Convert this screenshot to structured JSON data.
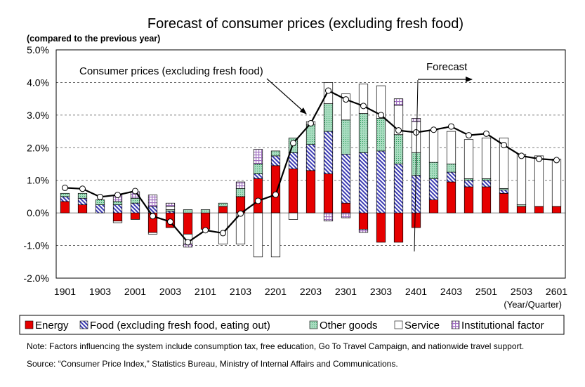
{
  "chart_data": {
    "type": "bar",
    "subtype": "stacked bar with line",
    "title": "Forecast of consumer prices (excluding fresh food)",
    "ylabel": "(compared to the previous year)",
    "xlabel": "(Year/Quarter)",
    "ylim": [
      -2.0,
      5.0
    ],
    "y_ticks": [
      "5.0%",
      "4.0%",
      "3.0%",
      "2.0%",
      "1.0%",
      "0.0%",
      "-1.0%",
      "-2.0%"
    ],
    "y_tick_values": [
      5,
      4,
      3,
      2,
      1,
      0,
      -1,
      -2
    ],
    "x_tick_labels": [
      "1901",
      "1903",
      "2001",
      "2003",
      "2101",
      "2103",
      "2201",
      "2203",
      "2301",
      "2303",
      "2401",
      "2403",
      "2501",
      "2503",
      "2601"
    ],
    "grid": "horizontal dashed",
    "legend_position": "bottom",
    "categories": [
      "1901",
      "1902",
      "1903",
      "1904",
      "2001",
      "2002",
      "2003",
      "2004",
      "2101",
      "2102",
      "2103",
      "2104",
      "2201",
      "2202",
      "2203",
      "2204",
      "2301",
      "2302",
      "2303",
      "2304",
      "2401",
      "2402",
      "2403",
      "2404",
      "2501",
      "2502",
      "2503",
      "2504",
      "2601"
    ],
    "series": [
      {
        "name": "Energy",
        "key": "energy",
        "color": "#e60000",
        "values": [
          0.35,
          0.25,
          0.0,
          -0.25,
          -0.2,
          -0.6,
          -0.45,
          -0.65,
          -0.5,
          0.2,
          0.5,
          1.05,
          1.45,
          1.35,
          1.3,
          1.2,
          0.3,
          -0.5,
          -0.9,
          -0.9,
          -0.45,
          0.4,
          0.95,
          0.8,
          0.8,
          0.6,
          0.2,
          0.2,
          0.2
        ]
      },
      {
        "name": "Food (excluding fresh food, eating out)",
        "key": "food",
        "color": "#3b3bb3",
        "values": [
          0.15,
          0.2,
          0.25,
          0.25,
          0.3,
          0.2,
          0.05,
          0.0,
          0.0,
          0.0,
          0.0,
          0.15,
          0.3,
          0.5,
          0.8,
          1.3,
          1.5,
          1.85,
          1.9,
          1.5,
          1.15,
          0.65,
          0.3,
          0.2,
          0.2,
          0.1,
          0.0,
          0.0,
          0.0
        ]
      },
      {
        "name": "Other goods",
        "key": "other",
        "color": "#2e9e5e",
        "values": [
          0.1,
          0.15,
          0.15,
          0.1,
          0.15,
          0.0,
          0.05,
          0.1,
          0.1,
          0.1,
          0.25,
          0.3,
          0.15,
          0.45,
          0.6,
          0.85,
          1.05,
          1.2,
          1.0,
          0.9,
          0.7,
          0.5,
          0.25,
          0.05,
          0.05,
          0.05,
          0.05,
          0.0,
          0.0
        ]
      },
      {
        "name": "Service",
        "key": "service",
        "color": "#ffffff",
        "values": [
          0.0,
          0.0,
          0.0,
          -0.05,
          0.0,
          -0.05,
          0.1,
          -0.3,
          0.0,
          -0.95,
          -0.95,
          -1.35,
          -1.35,
          -0.2,
          0.1,
          0.65,
          0.8,
          0.9,
          1.0,
          0.9,
          0.95,
          1.0,
          1.0,
          1.2,
          1.25,
          1.55,
          1.55,
          1.55,
          1.45
        ]
      },
      {
        "name": "Institutional factor",
        "key": "inst",
        "color": "#a070c0",
        "values": [
          0.0,
          0.0,
          0.0,
          0.2,
          0.2,
          0.35,
          0.1,
          -0.1,
          0.0,
          0.0,
          0.2,
          0.45,
          0.0,
          0.0,
          0.0,
          -0.25,
          -0.15,
          -0.1,
          0.0,
          0.2,
          0.1,
          0.0,
          0.0,
          0.0,
          0.0,
          0.0,
          0.0,
          0.0,
          0.0
        ]
      }
    ],
    "line": {
      "name": "Consumer prices (excluding fresh food)",
      "values": [
        0.77,
        0.74,
        0.49,
        0.55,
        0.67,
        -0.1,
        -0.27,
        -0.9,
        -0.53,
        -0.62,
        -0.02,
        0.37,
        0.56,
        2.14,
        2.75,
        3.75,
        3.48,
        3.28,
        3.0,
        2.53,
        2.47,
        2.55,
        2.65,
        2.38,
        2.43,
        2.08,
        1.75,
        1.66,
        1.62
      ]
    },
    "annotations": {
      "line_label": "Consumer prices (excluding fresh food)",
      "forecast_label": "Forecast",
      "forecast_start_category": "2402"
    }
  },
  "note": "Note: Factors influencing the system include consumption tax, free education, Go To Travel Campaign, and nationwide travel support.",
  "source": "Source: “Consumer Price Index,” Statistics Bureau, Ministry of Internal Affairs and Communications."
}
